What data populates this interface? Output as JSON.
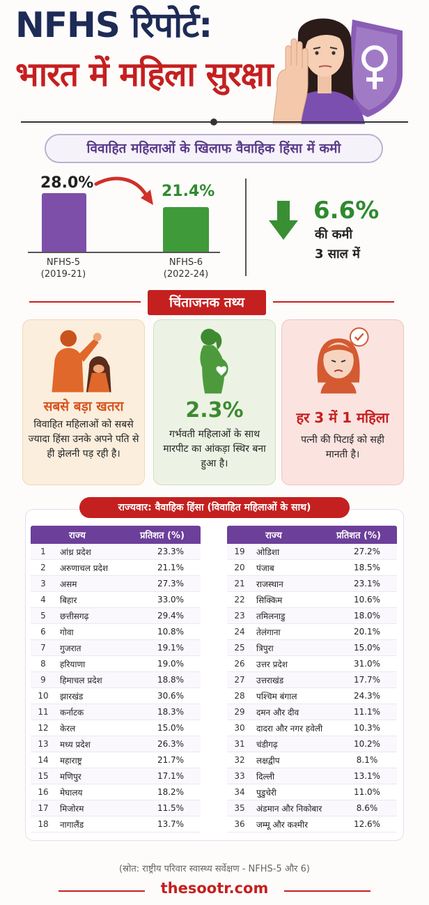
{
  "header": {
    "title_line1": "NFHS रिपोर्ट:",
    "title_line2": "भारत में महिला सुरक्षा",
    "illustration_icon": "woman-stop-hand-shield-icon"
  },
  "decline": {
    "title": "विवाहित महिलाओं के खिलाफ वैवाहिक हिंसा में कमी",
    "bars": [
      {
        "value_label": "28.0%",
        "value": 28.0,
        "name": "NFHS-5",
        "years": "(2019-21)",
        "color": "#7d4fa8"
      },
      {
        "value_label": "21.4%",
        "value": 21.4,
        "name": "NFHS-6",
        "years": "(2022-24)",
        "color": "#3f9a3a"
      }
    ],
    "drop_value": "6.6%",
    "drop_line1": "की कमी",
    "drop_line2": "3 साल में",
    "colors": {
      "arrow_red": "#d0302a",
      "down_green": "#3a8f34"
    }
  },
  "facts": {
    "title": "चिंताजनक तथ्य",
    "cards": [
      {
        "heading": "सबसे बड़ा खतरा",
        "body": "विवाहित महिलाओं को सबसे ज्यादा हिंसा उनके अपने पति से ही झेलनी पड़ रही है।",
        "icon": "domestic-violence-icon",
        "color": "#d9531e"
      },
      {
        "heading": "2.3%",
        "body": "गर्भवती महिलाओं के साथ मारपीट का आंकड़ा स्थिर बना हुआ है।",
        "icon": "pregnant-woman-icon",
        "color": "#3d8a30"
      },
      {
        "heading": "हर 3 में 1 महिला",
        "body": "पत्नी की पिटाई को सही मानती है।",
        "icon": "sad-woman-check-icon",
        "color": "#c4201f"
      }
    ]
  },
  "table": {
    "title": "राज्यवार: वैवाहिक हिंसा (विवाहित महिलाओं के साथ)",
    "col_state": "राज्य",
    "col_pct": "प्रतिशत (%)",
    "left_rows": [
      {
        "idx": "1",
        "state": "आंध्र प्रदेश",
        "pct": "23.3%"
      },
      {
        "idx": "2",
        "state": "अरुणाचल प्रदेश",
        "pct": "21.1%"
      },
      {
        "idx": "3",
        "state": "असम",
        "pct": "27.3%"
      },
      {
        "idx": "4",
        "state": "बिहार",
        "pct": "33.0%"
      },
      {
        "idx": "5",
        "state": "छत्तीसगढ़",
        "pct": "29.4%"
      },
      {
        "idx": "6",
        "state": "गोवा",
        "pct": "10.8%"
      },
      {
        "idx": "7",
        "state": "गुजरात",
        "pct": "19.1%"
      },
      {
        "idx": "8",
        "state": "हरियाणा",
        "pct": "19.0%"
      },
      {
        "idx": "9",
        "state": "हिमाचल प्रदेश",
        "pct": "18.8%"
      },
      {
        "idx": "10",
        "state": "झारखंड",
        "pct": "30.6%"
      },
      {
        "idx": "11",
        "state": "कर्नाटक",
        "pct": "18.3%"
      },
      {
        "idx": "12",
        "state": "केरल",
        "pct": "15.0%"
      },
      {
        "idx": "13",
        "state": "मध्य प्रदेश",
        "pct": "26.3%"
      },
      {
        "idx": "14",
        "state": "महाराष्ट्र",
        "pct": "21.7%"
      },
      {
        "idx": "15",
        "state": "मणिपुर",
        "pct": "17.1%"
      },
      {
        "idx": "16",
        "state": "मेघालय",
        "pct": "18.2%"
      },
      {
        "idx": "17",
        "state": "मिजोरम",
        "pct": "11.5%"
      },
      {
        "idx": "18",
        "state": "नागालैंड",
        "pct": "13.7%"
      }
    ],
    "right_rows": [
      {
        "idx": "19",
        "state": "ओडिशा",
        "pct": "27.2%"
      },
      {
        "idx": "20",
        "state": "पंजाब",
        "pct": "18.5%"
      },
      {
        "idx": "21",
        "state": "राजस्थान",
        "pct": "23.1%"
      },
      {
        "idx": "22",
        "state": "सिक्किम",
        "pct": "10.6%"
      },
      {
        "idx": "23",
        "state": "तमिलनाडु",
        "pct": "18.0%"
      },
      {
        "idx": "24",
        "state": "तेलंगाना",
        "pct": "20.1%"
      },
      {
        "idx": "25",
        "state": "त्रिपुरा",
        "pct": "15.0%"
      },
      {
        "idx": "26",
        "state": "उत्तर प्रदेश",
        "pct": "31.0%"
      },
      {
        "idx": "27",
        "state": "उत्तराखंड",
        "pct": "17.7%"
      },
      {
        "idx": "28",
        "state": "पश्चिम बंगाल",
        "pct": "24.3%"
      },
      {
        "idx": "29",
        "state": "दमन और दीव",
        "pct": "11.1%"
      },
      {
        "idx": "30",
        "state": "दादरा और नगर हवेली",
        "pct": "10.3%"
      },
      {
        "idx": "31",
        "state": "चंडीगढ़",
        "pct": "10.2%"
      },
      {
        "idx": "32",
        "state": "लक्षद्वीप",
        "pct": "8.1%"
      },
      {
        "idx": "33",
        "state": "दिल्ली",
        "pct": "13.1%"
      },
      {
        "idx": "34",
        "state": "पुडुचेरी",
        "pct": "11.0%"
      },
      {
        "idx": "35",
        "state": "अंडमान और निकोबार",
        "pct": "8.6%"
      },
      {
        "idx": "36",
        "state": "जम्मू और कश्मीर",
        "pct": "12.6%"
      }
    ]
  },
  "footer": {
    "source": "(स्रोत: राष्ट्रीय परिवार स्वास्थ्य सर्वेक्षण - NFHS-5 और 6)",
    "brand": "thesootr.com"
  }
}
